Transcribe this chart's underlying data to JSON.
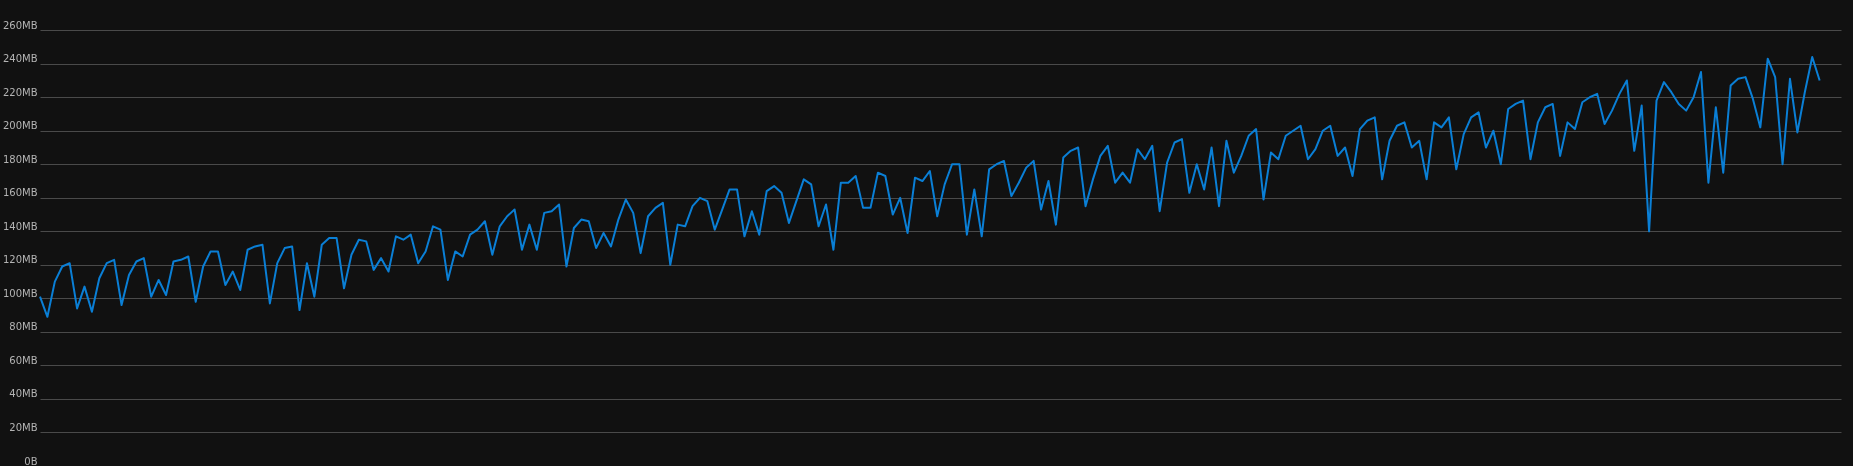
{
  "chart_data": {
    "type": "line",
    "categories": [
      null,
      null,
      null,
      null,
      null,
      null,
      null,
      null,
      null,
      null,
      null,
      null,
      null,
      null,
      null,
      null,
      null,
      null,
      null,
      null,
      null,
      null,
      null,
      null,
      null,
      null,
      null,
      null,
      null,
      null,
      null,
      null,
      null,
      null,
      null,
      null,
      null,
      null,
      null,
      null,
      null,
      null,
      null,
      null,
      null,
      null,
      null,
      null,
      null,
      null,
      null,
      null,
      null,
      null,
      null,
      null,
      null,
      null,
      null,
      null,
      null,
      null,
      null,
      null,
      null,
      null,
      null,
      null,
      null,
      null,
      null,
      null,
      null,
      null,
      null,
      null,
      null,
      null,
      null,
      null,
      null,
      null,
      null,
      null,
      null,
      null,
      null,
      null,
      null,
      null,
      null,
      null,
      null,
      null,
      null,
      null,
      null,
      null,
      null,
      null,
      null,
      null,
      null,
      null,
      null,
      null,
      null,
      null,
      null,
      null,
      null,
      null,
      null,
      null,
      null,
      null,
      null,
      null,
      null,
      null,
      null,
      null,
      null,
      null,
      null,
      null,
      null,
      null,
      null,
      null,
      null,
      null,
      null,
      null,
      null,
      null,
      null,
      null,
      null,
      null,
      null,
      null,
      null,
      null,
      null,
      null,
      null,
      null,
      null,
      null,
      null,
      null,
      null,
      null,
      null,
      null,
      null,
      null,
      null,
      null,
      null,
      null,
      null,
      null,
      null,
      null,
      null,
      null,
      null,
      null,
      null,
      null,
      null,
      null,
      null,
      null,
      null,
      null,
      null,
      null,
      null,
      null,
      null,
      null,
      null,
      null,
      null,
      null,
      null,
      null,
      null,
      null,
      null,
      null,
      null,
      null,
      null,
      null,
      null,
      null,
      null,
      null,
      null,
      null,
      null,
      null,
      null,
      null,
      null,
      null,
      null,
      null,
      null,
      null,
      null,
      null,
      null,
      null,
      null,
      null,
      null,
      null,
      null,
      null,
      null,
      null,
      null,
      null,
      null,
      null,
      null,
      null,
      null,
      null,
      null,
      null,
      null,
      null,
      null,
      null,
      null
    ],
    "series": [
      {
        "color": "#0a7fd6",
        "values": [
          101,
          89,
          110,
          119,
          121,
          94,
          107,
          92,
          112,
          121,
          123,
          96,
          114,
          122,
          124,
          101,
          111,
          102,
          122,
          123,
          125,
          98,
          119,
          128,
          128,
          108,
          116,
          105,
          129,
          131,
          132,
          97,
          121,
          130,
          131,
          93,
          121,
          101,
          132,
          136,
          136,
          106,
          126,
          135,
          134,
          117,
          124,
          116,
          137,
          135,
          138,
          121,
          128,
          143,
          141,
          111,
          128,
          125,
          138,
          141,
          146,
          126,
          143,
          149,
          153,
          129,
          144,
          129,
          151,
          152,
          156,
          119,
          142,
          147,
          146,
          130,
          139,
          131,
          147,
          159,
          151,
          127,
          149,
          154,
          157,
          120,
          144,
          143,
          155,
          160,
          158,
          141,
          153,
          165,
          165,
          137,
          152,
          138,
          164,
          167,
          163,
          145,
          158,
          171,
          168,
          143,
          156,
          129,
          169,
          169,
          173,
          154,
          154,
          175,
          173,
          150,
          160,
          139,
          172,
          170,
          176,
          149,
          168,
          180,
          180,
          138,
          165,
          137,
          177,
          180,
          182,
          161,
          169,
          178,
          182,
          153,
          170,
          144,
          184,
          188,
          190,
          155,
          171,
          185,
          191,
          169,
          175,
          169,
          189,
          183,
          191,
          152,
          181,
          193,
          195,
          163,
          180,
          165,
          190,
          155,
          194,
          175,
          185,
          197,
          201,
          159,
          187,
          183,
          197,
          200,
          203,
          183,
          189,
          200,
          203,
          185,
          190,
          173,
          201,
          206,
          208,
          171,
          194,
          203,
          205,
          190,
          194,
          171,
          205,
          202,
          208,
          177,
          198,
          208,
          211,
          190,
          200,
          180,
          213,
          216,
          218,
          183,
          205,
          214,
          216,
          185,
          205,
          201,
          217,
          220,
          222,
          204,
          212,
          222,
          230,
          188,
          215,
          140,
          218,
          229,
          223,
          216,
          212,
          220,
          235,
          169,
          214,
          175,
          227,
          231,
          232,
          219,
          202,
          243,
          232,
          180,
          231,
          199,
          223,
          244,
          230
        ]
      }
    ],
    "ylim": [
      0,
      278
    ],
    "yticks": [
      {
        "value": 0,
        "label": "0B"
      },
      {
        "value": 20,
        "label": "20MB"
      },
      {
        "value": 40,
        "label": "40MB"
      },
      {
        "value": 60,
        "label": "60MB"
      },
      {
        "value": 80,
        "label": "80MB"
      },
      {
        "value": 100,
        "label": "100MB"
      },
      {
        "value": 120,
        "label": "120MB"
      },
      {
        "value": 140,
        "label": "140MB"
      },
      {
        "value": 160,
        "label": "160MB"
      },
      {
        "value": 180,
        "label": "180MB"
      },
      {
        "value": 200,
        "label": "200MB"
      },
      {
        "value": 220,
        "label": "220MB"
      },
      {
        "value": 240,
        "label": "240MB"
      },
      {
        "value": 260,
        "label": "260MB"
      }
    ],
    "grid": "y"
  }
}
